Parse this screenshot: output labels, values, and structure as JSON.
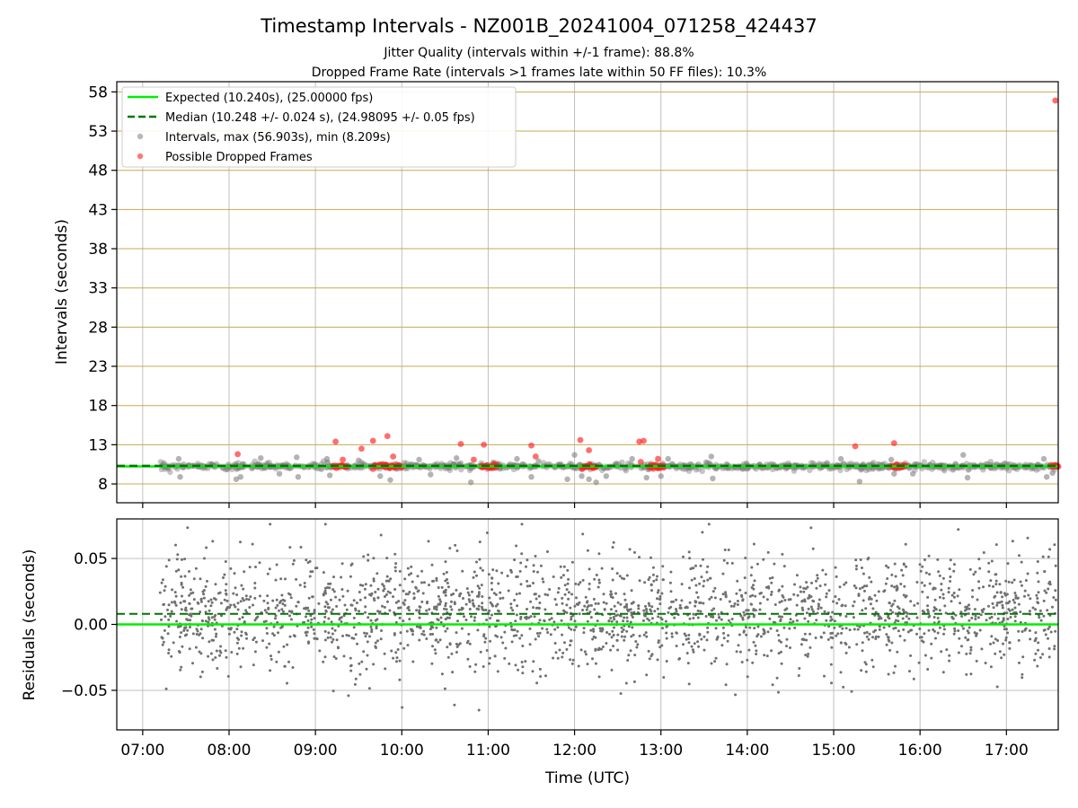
{
  "title": "Timestamp Intervals - NZ001B_20241004_071258_424437",
  "subtitle_1": "Jitter Quality (intervals within +/-1 frame): 88.8%",
  "subtitle_2": "Dropped Frame Rate (intervals >1 frames late within 50 FF files): 10.3%",
  "colors": {
    "expected": "#00ee00",
    "median": "#007700",
    "intervals": "#808080",
    "dropped": "#ff2020",
    "hgrid_top": "#c8a850",
    "grid": "#c0c0c0"
  },
  "chart_data": [
    {
      "type": "scatter",
      "ylabel": "Intervals (seconds)",
      "xlim": [
        "06:42",
        "17:36"
      ],
      "ylim": [
        5.6,
        59.3
      ],
      "y_ticks": [
        8,
        13,
        18,
        23,
        28,
        33,
        38,
        43,
        48,
        53,
        58
      ],
      "x_ticks": [
        "07:00",
        "08:00",
        "09:00",
        "10:00",
        "11:00",
        "12:00",
        "13:00",
        "14:00",
        "15:00",
        "16:00",
        "17:00"
      ],
      "grid": true,
      "legend_position": "top-left",
      "legend": {
        "expected": "Expected (10.240s), (25.00000 fps)",
        "median": "Median (10.248 +/- 0.024 s), (24.98095 +/- 0.05 fps)",
        "intervals": "Intervals, max (56.903s), min (8.209s)",
        "dropped": "Possible Dropped Frames"
      },
      "expected_value": 10.24,
      "median_value": 10.248,
      "interval_band": {
        "start": "07:12",
        "end": "17:36",
        "center": 10.24,
        "spread": 0.6
      },
      "interval_outliers": [
        {
          "t": "07:25",
          "y": 11.2
        },
        {
          "t": "07:26",
          "y": 8.9
        },
        {
          "t": "08:05",
          "y": 8.6
        },
        {
          "t": "08:08",
          "y": 8.9
        },
        {
          "t": "08:22",
          "y": 11.3
        },
        {
          "t": "08:35",
          "y": 9.3
        },
        {
          "t": "08:47",
          "y": 11.4
        },
        {
          "t": "08:48",
          "y": 8.9
        },
        {
          "t": "09:08",
          "y": 11.2
        },
        {
          "t": "09:10",
          "y": 9.1
        },
        {
          "t": "09:30",
          "y": 11.0
        },
        {
          "t": "09:45",
          "y": 9.0
        },
        {
          "t": "09:52",
          "y": 8.5
        },
        {
          "t": "10:12",
          "y": 11.1
        },
        {
          "t": "10:20",
          "y": 9.2
        },
        {
          "t": "10:38",
          "y": 11.3
        },
        {
          "t": "10:48",
          "y": 8.2
        },
        {
          "t": "11:20",
          "y": 11.2
        },
        {
          "t": "11:30",
          "y": 8.9
        },
        {
          "t": "11:35",
          "y": 10.9
        },
        {
          "t": "11:55",
          "y": 8.6
        },
        {
          "t": "12:00",
          "y": 11.7
        },
        {
          "t": "12:05",
          "y": 9.0
        },
        {
          "t": "12:10",
          "y": 8.6
        },
        {
          "t": "12:15",
          "y": 8.2
        },
        {
          "t": "12:22",
          "y": 9.0
        },
        {
          "t": "12:40",
          "y": 11.2
        },
        {
          "t": "12:50",
          "y": 8.8
        },
        {
          "t": "13:00",
          "y": 9.0
        },
        {
          "t": "13:05",
          "y": 11.2
        },
        {
          "t": "13:35",
          "y": 11.5
        },
        {
          "t": "13:36",
          "y": 8.7
        },
        {
          "t": "15:05",
          "y": 11.2
        },
        {
          "t": "15:18",
          "y": 8.3
        },
        {
          "t": "15:40",
          "y": 11.1
        },
        {
          "t": "15:42",
          "y": 9.3
        },
        {
          "t": "15:55",
          "y": 9.3
        },
        {
          "t": "16:30",
          "y": 11.7
        },
        {
          "t": "16:33",
          "y": 8.8
        },
        {
          "t": "17:26",
          "y": 11.2
        },
        {
          "t": "17:28",
          "y": 8.9
        },
        {
          "t": "17:32",
          "y": 9.4
        }
      ],
      "dropped_clusters": [
        {
          "start": "09:12",
          "end": "09:22"
        },
        {
          "start": "09:40",
          "end": "10:00"
        },
        {
          "start": "10:55",
          "end": "11:06"
        },
        {
          "start": "12:05",
          "end": "12:15"
        },
        {
          "start": "12:52",
          "end": "13:02"
        },
        {
          "start": "15:40",
          "end": "15:50"
        },
        {
          "start": "17:31",
          "end": "17:36"
        }
      ],
      "dropped_points": [
        {
          "t": "08:06",
          "y": 11.8
        },
        {
          "t": "09:14",
          "y": 13.4
        },
        {
          "t": "09:19",
          "y": 11.1
        },
        {
          "t": "09:32",
          "y": 12.5
        },
        {
          "t": "09:40",
          "y": 13.5
        },
        {
          "t": "09:50",
          "y": 14.1
        },
        {
          "t": "09:54",
          "y": 11.5
        },
        {
          "t": "10:41",
          "y": 13.1
        },
        {
          "t": "10:50",
          "y": 11.1
        },
        {
          "t": "10:57",
          "y": 13.0
        },
        {
          "t": "11:30",
          "y": 12.9
        },
        {
          "t": "11:33",
          "y": 11.5
        },
        {
          "t": "12:04",
          "y": 13.6
        },
        {
          "t": "12:10",
          "y": 12.3
        },
        {
          "t": "12:45",
          "y": 13.4
        },
        {
          "t": "12:48",
          "y": 13.5
        },
        {
          "t": "12:46",
          "y": 10.8
        },
        {
          "t": "12:58",
          "y": 11.2
        },
        {
          "t": "15:15",
          "y": 12.8
        },
        {
          "t": "15:42",
          "y": 13.2
        },
        {
          "t": "17:34",
          "y": 56.9
        }
      ]
    },
    {
      "type": "scatter",
      "xlabel": "Time (UTC)",
      "ylabel": "Residuals (seconds)",
      "xlim": [
        "06:42",
        "17:36"
      ],
      "ylim": [
        -0.08,
        0.08
      ],
      "y_ticks": [
        0.05,
        0.0,
        -0.05
      ],
      "y_tick_labels": [
        "0.05",
        "0.00",
        "−0.05"
      ],
      "x_ticks": [
        "07:00",
        "08:00",
        "09:00",
        "10:00",
        "11:00",
        "12:00",
        "13:00",
        "14:00",
        "15:00",
        "16:00",
        "17:00"
      ],
      "grid": true,
      "expected_value": 0.0,
      "median_value": 0.008,
      "residual_band": {
        "start": "07:12",
        "end": "17:36",
        "count": 2200,
        "sigma": 0.022,
        "min": -0.065,
        "max": 0.076
      }
    }
  ]
}
